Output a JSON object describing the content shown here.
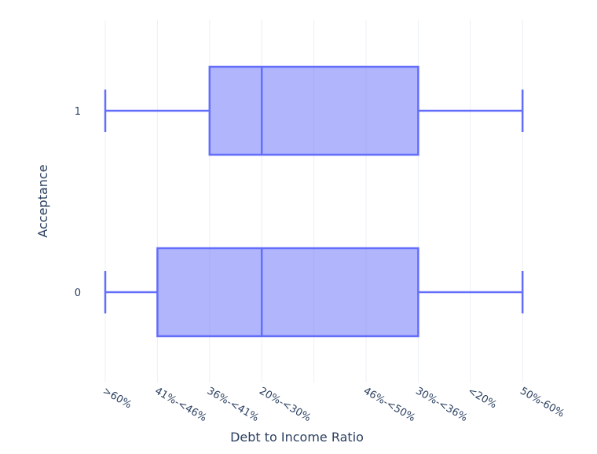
{
  "chart_data": {
    "type": "box",
    "orientation": "horizontal",
    "title": "",
    "xlabel": "Debt to Income Ratio",
    "ylabel": "Acceptance",
    "x_categories": [
      ">60%",
      "41%-<46%",
      "36%-<41%",
      "20%-<30%",
      "",
      "46%-<50%",
      "30%-<36%",
      "<20%",
      "50%-60%"
    ],
    "y_categories": [
      "0",
      "1"
    ],
    "color": "#636efa",
    "fill_color": "rgba(99,110,250,0.5)",
    "grid": true,
    "series": [
      {
        "name": "1",
        "min": ">60%",
        "q1": "36%-<41%",
        "median": "20%-<30%",
        "q3": "30%-<36%",
        "max": "50%-60%",
        "min_idx": 0,
        "q1_idx": 2,
        "median_idx": 3,
        "q3_idx": 6,
        "max_idx": 8
      },
      {
        "name": "0",
        "min": ">60%",
        "q1": "41%-<46%",
        "median": "20%-<30%",
        "q3": "30%-<36%",
        "max": "50%-60%",
        "min_idx": 0,
        "q1_idx": 1,
        "median_idx": 3,
        "q3_idx": 6,
        "max_idx": 8
      }
    ]
  }
}
